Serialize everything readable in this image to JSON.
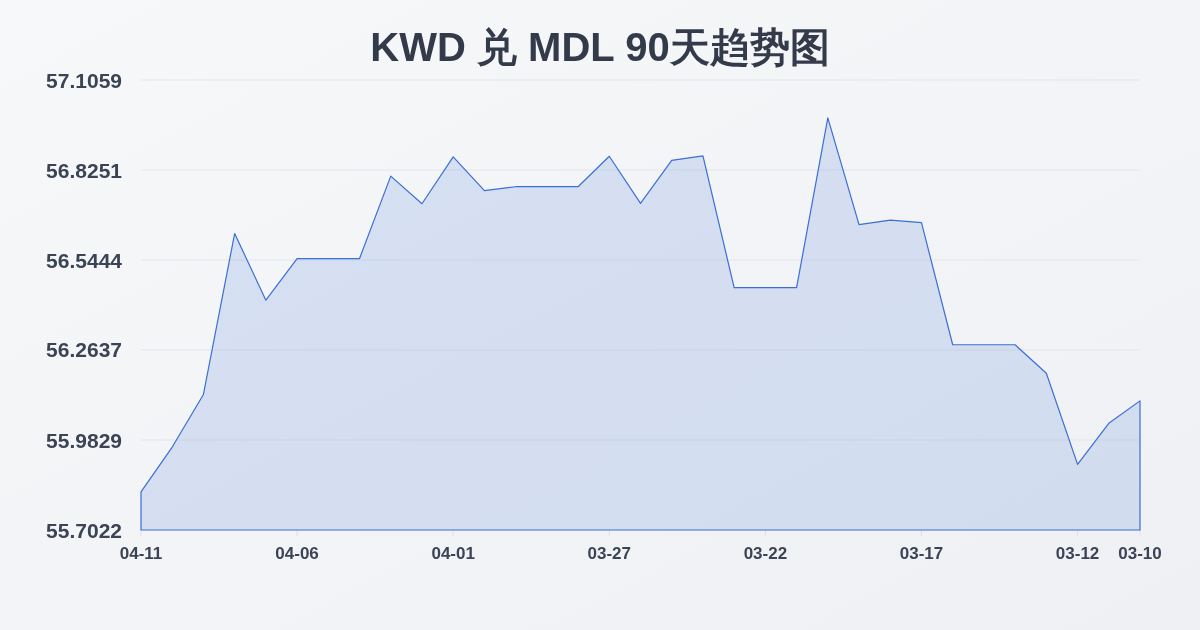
{
  "chart_data": {
    "type": "area",
    "title": "KWD 兑 MDL 90天趋势图",
    "categories": [
      "04-11",
      null,
      null,
      null,
      null,
      "04-06",
      null,
      null,
      null,
      null,
      "04-01",
      null,
      null,
      null,
      null,
      "03-27",
      null,
      null,
      null,
      null,
      "03-22",
      null,
      null,
      null,
      null,
      "03-17",
      null,
      null,
      null,
      null,
      "03-12",
      null,
      "03-10"
    ],
    "series": [
      {
        "color": "#3b6fd4",
        "values": [
          55.821,
          55.961,
          56.125,
          56.627,
          56.419,
          56.549,
          56.549,
          56.549,
          56.806,
          56.72,
          56.866,
          56.761,
          56.773,
          56.773,
          56.773,
          56.868,
          56.721,
          56.855,
          56.869,
          56.458,
          56.458,
          56.458,
          56.988,
          56.655,
          56.669,
          56.661,
          56.28,
          56.28,
          56.28,
          56.191,
          55.907,
          56.035,
          56.105
        ]
      }
    ],
    "ylim": [
      55.7022,
      57.1059
    ],
    "yticks": [
      55.7022,
      55.9829,
      56.2637,
      56.5444,
      56.8251,
      57.1059
    ],
    "grid": "y"
  }
}
